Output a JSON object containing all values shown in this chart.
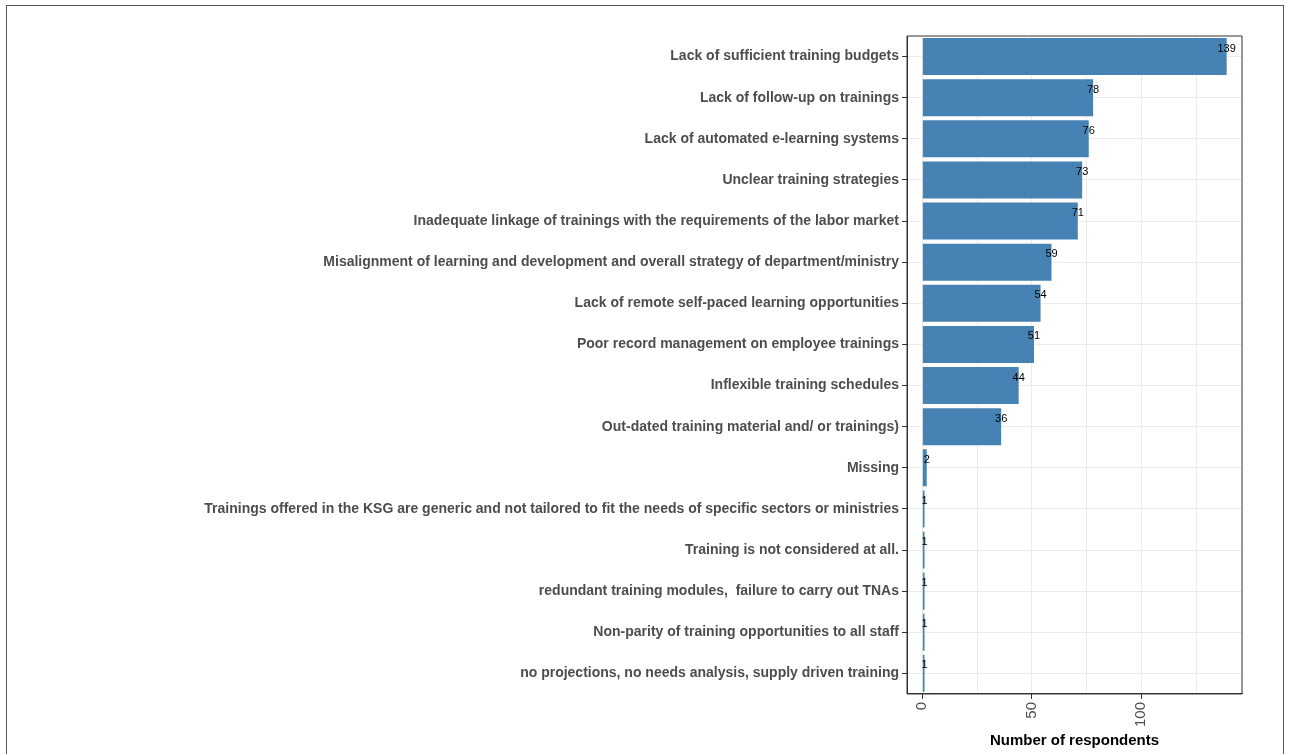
{
  "chart_data": {
    "type": "bar",
    "orientation": "horizontal",
    "xlabel": "Number of respondents",
    "categories": [
      "Lack of sufficient training budgets",
      "Lack of follow-up on trainings",
      "Lack of automated e-learning systems",
      "Unclear training strategies",
      "Inadequate linkage of trainings with the requirements of the labor market",
      "Misalignment of learning and development and overall strategy of department/ministry",
      "Lack of remote self-paced learning opportunities",
      "Poor record management on employee trainings",
      "Inflexible training schedules",
      "Out-dated training material and/ or trainings)",
      "Missing",
      "Trainings offered in the KSG are generic and not tailored to fit the needs of specific sectors or ministries",
      "Training is not considered at all.",
      "redundant training modules,  failure to carry out TNAs",
      "Non-parity of training opportunities to all staff",
      "no projections, no needs analysis, supply driven training"
    ],
    "values": [
      139,
      78,
      76,
      73,
      71,
      59,
      54,
      51,
      44,
      36,
      2,
      1,
      1,
      1,
      1,
      1
    ],
    "color": "#4682b4",
    "xlim": [
      -7,
      146
    ],
    "xticks": [
      0,
      {
        "value": 25,
        "label": null
      },
      50,
      {
        "value": 75,
        "label": null
      },
      100,
      {
        "value": 125,
        "label": null
      }
    ],
    "grid": true,
    "data_labels": true,
    "legend": false
  }
}
